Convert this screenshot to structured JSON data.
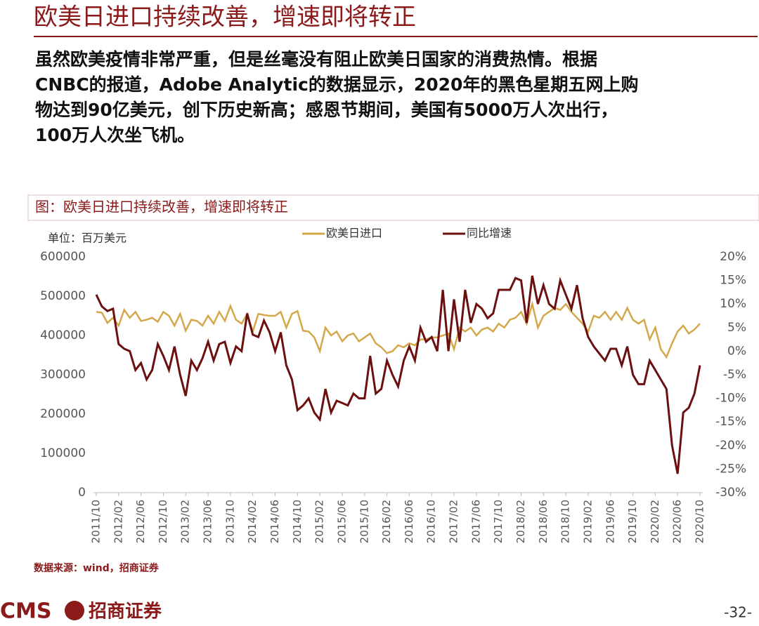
{
  "header": {
    "title": "欧美日进口持续改善，增速即将转正"
  },
  "body": {
    "lines": [
      "虽然欧美疫情非常严重，但是丝毫没有阻止欧美日国家的消费热情。根据",
      "CNBC的报道，Adobe Analytic的数据显示，2020年的黑色星期五网上购",
      "物达到90亿美元，创下历史新高；感恩节期间，美国有5000万人次出行，",
      "100万人次坐飞机。"
    ]
  },
  "chart_data": {
    "type": "line",
    "title": "图：欧美日进口持续改善，增速即将转正",
    "unit": "单位：百万美元",
    "source": "数据来源：wind，招商证券",
    "legend": "top",
    "categories": [
      "2011/10",
      null,
      null,
      null,
      "2012/02",
      null,
      null,
      null,
      "2012/06",
      null,
      null,
      null,
      "2012/10",
      null,
      null,
      null,
      "2013/02",
      null,
      null,
      null,
      "2013/06",
      null,
      null,
      null,
      "2013/10",
      null,
      null,
      null,
      "2014/02",
      null,
      null,
      null,
      "2014/06",
      null,
      null,
      null,
      "2014/10",
      null,
      null,
      null,
      "2015/02",
      null,
      null,
      null,
      "2015/06",
      null,
      null,
      null,
      "2015/10",
      null,
      null,
      null,
      "2016/02",
      null,
      null,
      null,
      "2016/06",
      null,
      null,
      null,
      "2016/10",
      null,
      null,
      null,
      "2017/02",
      null,
      null,
      null,
      "2017/06",
      null,
      null,
      null,
      "2017/10",
      null,
      null,
      null,
      "2018/02",
      null,
      null,
      null,
      "2018/06",
      null,
      null,
      null,
      "2018/10",
      null,
      null,
      null,
      "2019/02",
      null,
      null,
      null,
      "2019/06",
      null,
      null,
      null,
      "2019/10",
      null,
      null,
      null,
      "2020/02",
      null,
      null,
      null,
      "2020/06",
      null,
      null,
      null,
      "2020/10"
    ],
    "series": [
      {
        "name": "欧美日进口",
        "color": "#d4a84a",
        "axis": "y",
        "values": [
          460000,
          458000,
          432000,
          445000,
          425000,
          465000,
          445000,
          460000,
          437000,
          440000,
          445000,
          435000,
          460000,
          450000,
          425000,
          455000,
          412000,
          440000,
          437000,
          425000,
          450000,
          430000,
          460000,
          437000,
          475000,
          440000,
          430000,
          455000,
          410000,
          455000,
          452000,
          450000,
          450000,
          460000,
          420000,
          455000,
          462000,
          412000,
          410000,
          395000,
          360000,
          420000,
          400000,
          410000,
          385000,
          400000,
          405000,
          385000,
          395000,
          405000,
          380000,
          370000,
          355000,
          360000,
          375000,
          370000,
          380000,
          375000,
          390000,
          390000,
          395000,
          395000,
          400000,
          405000,
          365000,
          420000,
          410000,
          420000,
          400000,
          415000,
          420000,
          410000,
          430000,
          420000,
          440000,
          445000,
          460000,
          430000,
          480000,
          420000,
          450000,
          460000,
          470000,
          465000,
          480000,
          460000,
          445000,
          430000,
          410000,
          450000,
          445000,
          460000,
          440000,
          460000,
          440000,
          470000,
          440000,
          430000,
          440000,
          390000,
          420000,
          365000,
          345000,
          380000,
          410000,
          425000,
          405000,
          415000,
          430000
        ]
      },
      {
        "name": "同比增速",
        "color": "#6b0f0f",
        "axis": "y2",
        "values": [
          12,
          9.5,
          8.5,
          9,
          1.5,
          0.5,
          0,
          -4,
          -2.5,
          -6,
          -4,
          1.5,
          -1,
          -4,
          1,
          -5,
          -9.5,
          -2,
          -4,
          -1.5,
          2,
          -2,
          1.5,
          2,
          -2.5,
          1,
          0,
          8,
          3.5,
          3,
          6.5,
          4,
          0,
          4,
          -3,
          -6,
          -12.5,
          -11.5,
          -10,
          -13,
          -14.5,
          -8,
          -13,
          -10.5,
          -11,
          -11.5,
          -9,
          -10,
          -10,
          -1,
          -9,
          -8,
          -2,
          -5,
          -7.5,
          -2,
          1,
          -2,
          5,
          2,
          3,
          0,
          13,
          0,
          11,
          2,
          13,
          6,
          10,
          9,
          7,
          8,
          13,
          13,
          13,
          15.5,
          15,
          6,
          16,
          10,
          14,
          10,
          9,
          15,
          12,
          9,
          14,
          7,
          3,
          1,
          -0.5,
          -2,
          0.5,
          0.5,
          -3,
          1,
          -5,
          -7,
          -7,
          -2,
          -4,
          -6,
          -8,
          -20,
          -26,
          -13,
          -12,
          -9,
          -3
        ]
      }
    ],
    "ylim": [
      0,
      600000
    ],
    "yticks": [
      0,
      100000,
      200000,
      300000,
      400000,
      500000,
      600000
    ],
    "y2lim": [
      -30,
      20
    ],
    "y2ticks": [
      {
        "value": -30,
        "label": "-30%"
      },
      {
        "value": -25,
        "label": "-25%"
      },
      {
        "value": -20,
        "label": "-20%"
      },
      {
        "value": -15,
        "label": "-15%"
      },
      {
        "value": -10,
        "label": "-10%"
      },
      {
        "value": -5,
        "label": "-5%"
      },
      {
        "value": 0,
        "label": "0%"
      },
      {
        "value": 5,
        "label": "5%"
      },
      {
        "value": 10,
        "label": "10%"
      },
      {
        "value": 15,
        "label": "15%"
      },
      {
        "value": 20,
        "label": "20%"
      }
    ],
    "grid": false
  },
  "footer": {
    "logo": "CMS",
    "company": "招商证券",
    "page": "-32-"
  }
}
